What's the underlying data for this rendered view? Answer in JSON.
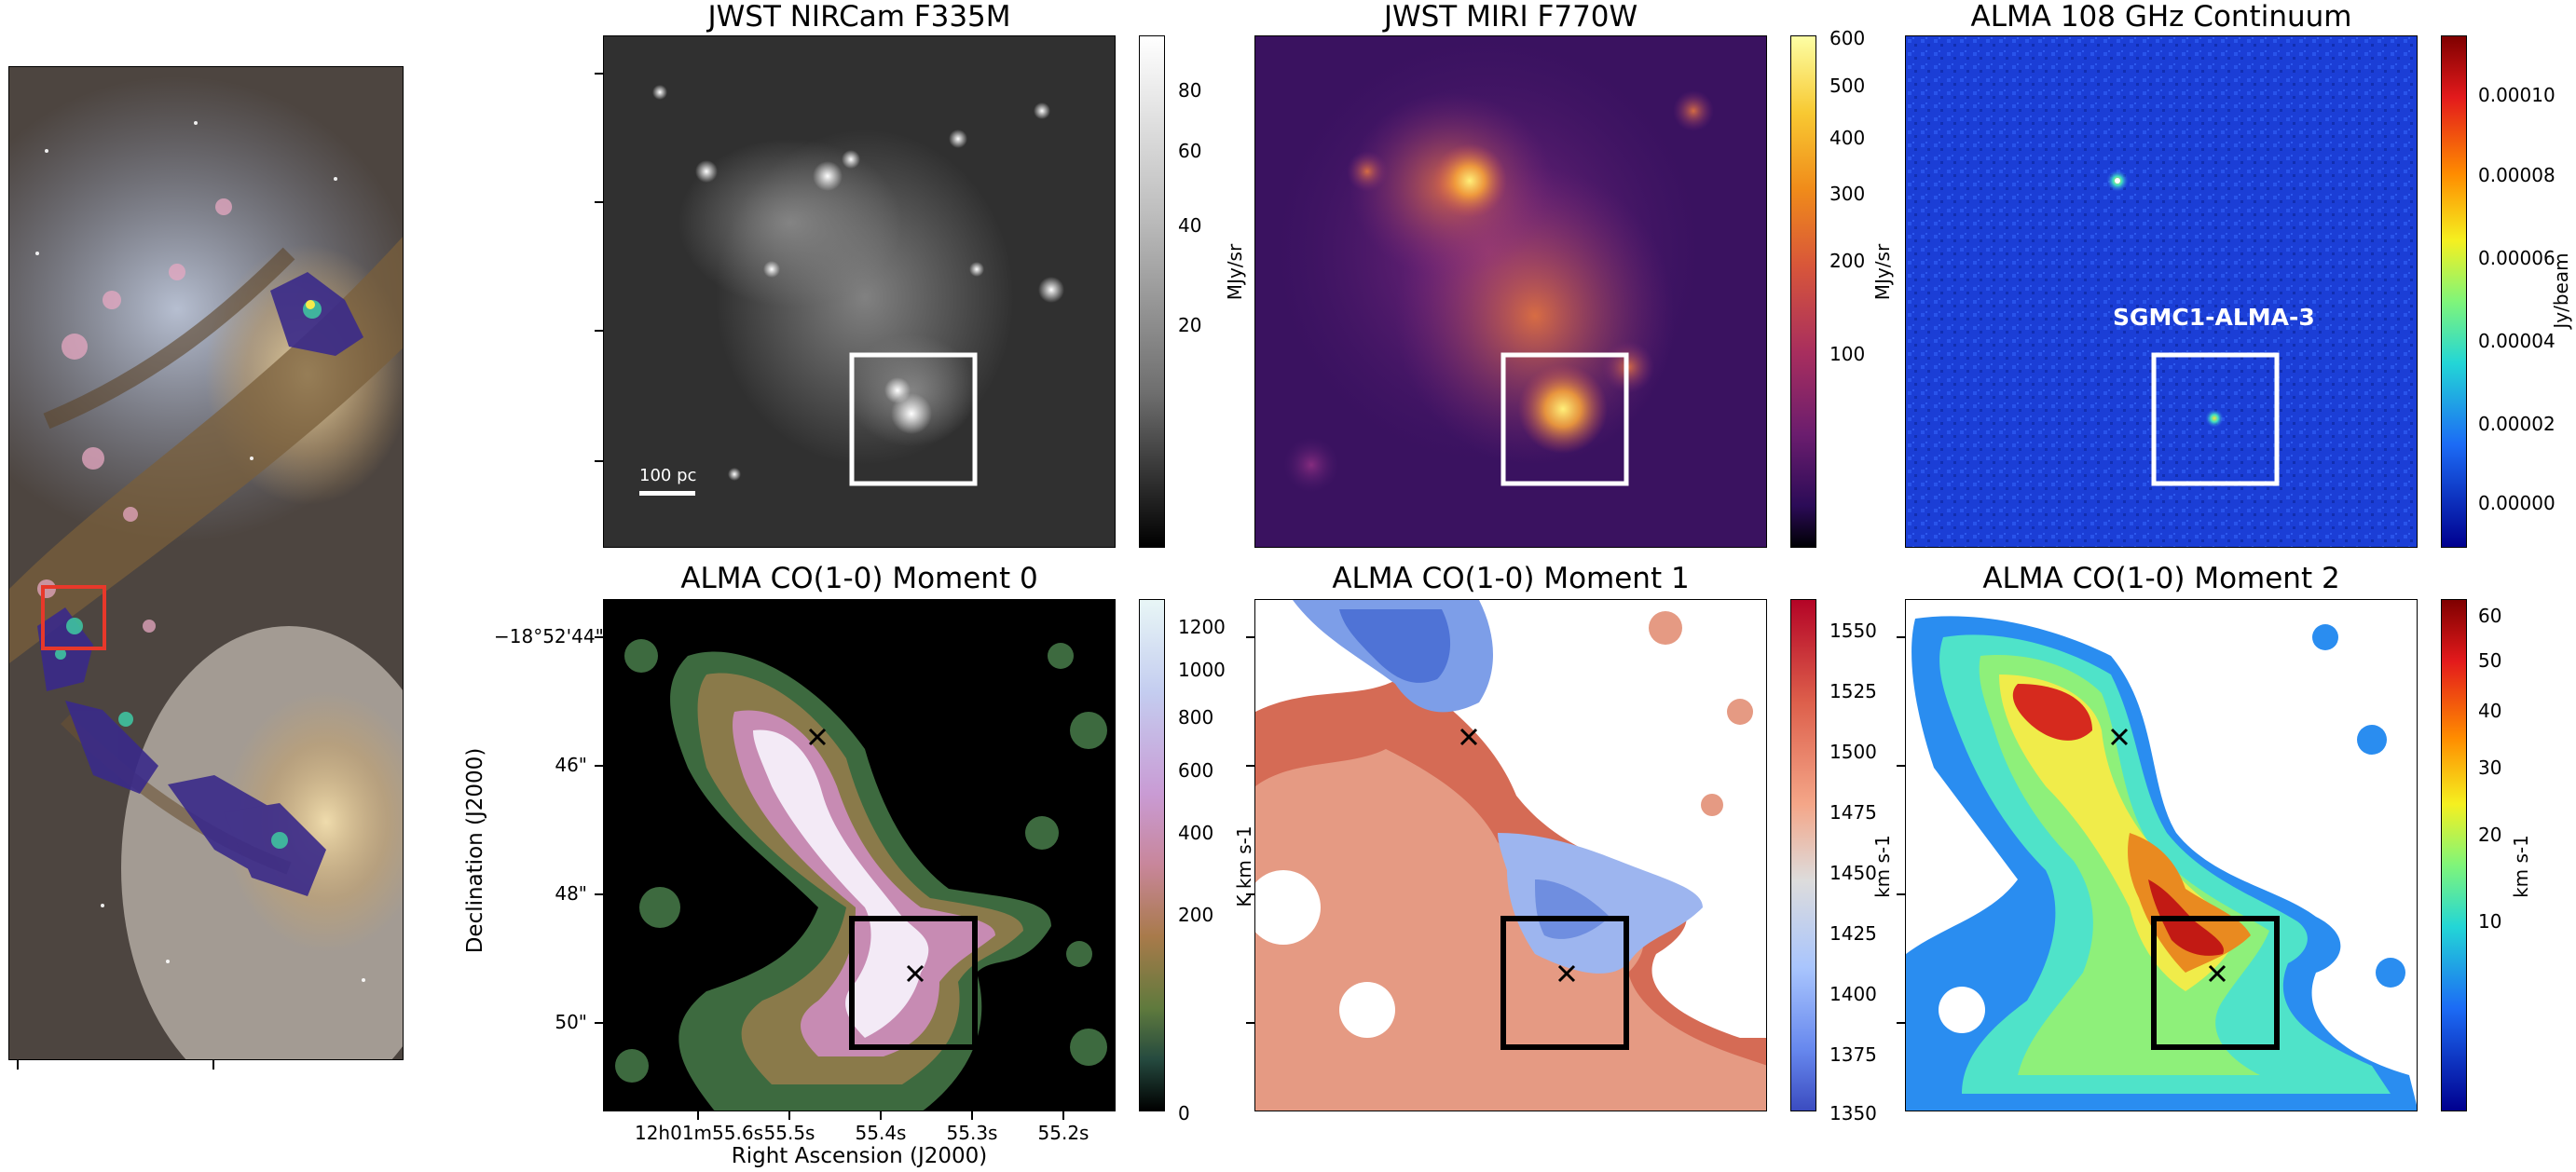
{
  "panels": {
    "nircam": {
      "title": "JWST NIRCam F335M",
      "unit": "MJy/sr",
      "ticks": [
        "80",
        "60",
        "40",
        "20"
      ],
      "scalebar": "100 pc"
    },
    "miri": {
      "title": "JWST MIRI F770W",
      "unit": "MJy/sr",
      "ticks": [
        "600",
        "500",
        "400",
        "300",
        "200",
        "100"
      ]
    },
    "alma_cont": {
      "title": "ALMA 108 GHz Continuum",
      "unit": "Jy/beam",
      "ticks": [
        "0.00010",
        "0.00008",
        "0.00006",
        "0.00004",
        "0.00002",
        "0.00000"
      ],
      "label": "SGMC1-ALMA-3"
    },
    "mom0": {
      "title": "ALMA CO(1-0) Moment 0",
      "unit": "K km s-1",
      "ticks": [
        "1200",
        "1000",
        "800",
        "600",
        "400",
        "200",
        "0"
      ]
    },
    "mom1": {
      "title": "ALMA CO(1-0) Moment 1",
      "unit": "km s-1",
      "ticks": [
        "1550",
        "1525",
        "1500",
        "1475",
        "1450",
        "1425",
        "1400",
        "1375",
        "1350"
      ]
    },
    "mom2": {
      "title": "ALMA CO(1-0) Moment 2",
      "unit": "km s-1",
      "ticks": [
        "60",
        "50",
        "40",
        "30",
        "20",
        "10"
      ]
    }
  },
  "axes": {
    "dec_ticks": [
      "−18°52'44\"",
      "46\"",
      "48\"",
      "50\""
    ],
    "ra_ticks": [
      "12h01m55.6s",
      "55.5s",
      "55.4s",
      "55.3s",
      "55.2s"
    ],
    "xlabel": "Right Ascension (J2000)",
    "ylabel": "Declination (J2000)"
  },
  "colors": {
    "box_white": "#ffffff",
    "box_black": "#000000",
    "overview_box": "#e8382a"
  }
}
